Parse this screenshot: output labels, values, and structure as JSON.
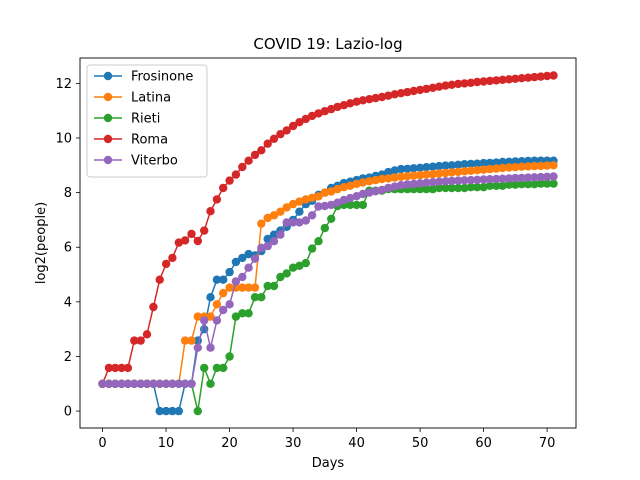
{
  "chart_data": {
    "type": "line",
    "title": "COVID 19: Lazio-log",
    "xlabel": "Days",
    "ylabel": "log2(people)",
    "xlim": [
      -3.55,
      74.55
    ],
    "ylim": [
      -0.62,
      12.93
    ],
    "xticks": [
      0,
      10,
      20,
      30,
      40,
      50,
      60,
      70
    ],
    "yticks": [
      0,
      2,
      4,
      6,
      8,
      10,
      12
    ],
    "legend_position": "upper-left",
    "grid": false,
    "markers": true,
    "series": [
      {
        "name": "Frosinone",
        "color": "#1f77b4",
        "x": [
          0,
          1,
          2,
          3,
          4,
          5,
          6,
          7,
          8,
          9,
          10,
          11,
          12,
          13,
          14,
          15,
          16,
          17,
          18,
          19,
          20,
          21,
          22,
          23,
          24,
          25,
          26,
          27,
          28,
          29,
          30,
          31,
          32,
          33,
          34,
          35,
          36,
          37,
          38,
          39,
          40,
          41,
          42,
          43,
          44,
          45,
          46,
          47,
          48,
          49,
          50,
          51,
          52,
          53,
          54,
          55,
          56,
          57,
          58,
          59,
          60,
          61,
          62,
          63,
          64,
          65,
          66,
          67,
          68,
          69,
          70,
          71
        ],
        "y": [
          1,
          1,
          1,
          1,
          1,
          1,
          1,
          1,
          1,
          0,
          0,
          0,
          0,
          1,
          1,
          2.58,
          3.0,
          4.17,
          4.81,
          4.81,
          5.09,
          5.46,
          5.61,
          5.75,
          5.7,
          5.86,
          6.3,
          6.46,
          6.61,
          6.75,
          7.0,
          7.3,
          7.58,
          7.7,
          7.92,
          8.0,
          8.17,
          8.25,
          8.35,
          8.4,
          8.46,
          8.52,
          8.55,
          8.61,
          8.66,
          8.75,
          8.81,
          8.86,
          8.87,
          8.89,
          8.91,
          8.93,
          8.95,
          8.97,
          8.99,
          9.0,
          9.02,
          9.04,
          9.05,
          9.06,
          9.08,
          9.09,
          9.1,
          9.12,
          9.13,
          9.14,
          9.15,
          9.16,
          9.17,
          9.17,
          9.17,
          9.17
        ]
      },
      {
        "name": "Latina",
        "color": "#ff7f0e",
        "x": [
          0,
          1,
          2,
          3,
          4,
          5,
          6,
          7,
          8,
          9,
          10,
          11,
          12,
          13,
          14,
          15,
          16,
          17,
          18,
          19,
          20,
          21,
          22,
          23,
          24,
          25,
          26,
          27,
          28,
          29,
          30,
          31,
          32,
          33,
          34,
          35,
          36,
          37,
          38,
          39,
          40,
          41,
          42,
          43,
          44,
          45,
          46,
          47,
          48,
          49,
          50,
          51,
          52,
          53,
          54,
          55,
          56,
          57,
          58,
          59,
          60,
          61,
          62,
          63,
          64,
          65,
          66,
          67,
          68,
          69,
          70,
          71
        ],
        "y": [
          1,
          1,
          1,
          1,
          1,
          1,
          1,
          1,
          1,
          1,
          1,
          1,
          1,
          2.58,
          2.58,
          3.46,
          3.46,
          3.46,
          3.91,
          4.32,
          4.52,
          4.52,
          4.52,
          4.52,
          4.52,
          6.86,
          7.07,
          7.17,
          7.3,
          7.46,
          7.58,
          7.67,
          7.75,
          7.81,
          7.86,
          8.0,
          8.04,
          8.13,
          8.2,
          8.25,
          8.32,
          8.37,
          8.42,
          8.46,
          8.5,
          8.52,
          8.55,
          8.58,
          8.6,
          8.62,
          8.64,
          8.66,
          8.68,
          8.7,
          8.72,
          8.74,
          8.76,
          8.78,
          8.8,
          8.82,
          8.84,
          8.86,
          8.88,
          8.9,
          8.92,
          8.93,
          8.95,
          8.96,
          8.97,
          8.98,
          8.99,
          9.0
        ]
      },
      {
        "name": "Rieti",
        "color": "#2ca02c",
        "x": [
          0,
          1,
          2,
          3,
          4,
          5,
          6,
          7,
          8,
          9,
          10,
          11,
          12,
          13,
          14,
          15,
          16,
          17,
          18,
          19,
          20,
          21,
          22,
          23,
          24,
          25,
          26,
          27,
          28,
          29,
          30,
          31,
          32,
          33,
          34,
          35,
          36,
          37,
          38,
          39,
          40,
          41,
          42,
          43,
          44,
          45,
          46,
          47,
          48,
          49,
          50,
          51,
          52,
          53,
          54,
          55,
          56,
          57,
          58,
          59,
          60,
          61,
          62,
          63,
          64,
          65,
          66,
          67,
          68,
          69,
          70,
          71
        ],
        "y": [
          1,
          1,
          1,
          1,
          1,
          1,
          1,
          1,
          1,
          1,
          1,
          1,
          1,
          1,
          1,
          0,
          1.58,
          1,
          1.58,
          1.58,
          2.0,
          3.46,
          3.58,
          3.58,
          4.17,
          4.17,
          4.58,
          4.58,
          4.91,
          5.04,
          5.25,
          5.32,
          5.42,
          5.95,
          6.22,
          6.7,
          7.04,
          7.51,
          7.55,
          7.55,
          7.55,
          7.55,
          8.07,
          8.07,
          8.07,
          8.13,
          8.13,
          8.13,
          8.13,
          8.13,
          8.13,
          8.13,
          8.13,
          8.17,
          8.17,
          8.17,
          8.17,
          8.17,
          8.2,
          8.2,
          8.2,
          8.25,
          8.25,
          8.25,
          8.29,
          8.29,
          8.31,
          8.31,
          8.31,
          8.33,
          8.33,
          8.33
        ]
      },
      {
        "name": "Roma",
        "color": "#d62728",
        "x": [
          0,
          1,
          2,
          3,
          4,
          5,
          6,
          7,
          8,
          9,
          10,
          11,
          12,
          13,
          14,
          15,
          16,
          17,
          18,
          19,
          20,
          21,
          22,
          23,
          24,
          25,
          26,
          27,
          28,
          29,
          30,
          31,
          32,
          33,
          34,
          35,
          36,
          37,
          38,
          39,
          40,
          41,
          42,
          43,
          44,
          45,
          46,
          47,
          48,
          49,
          50,
          51,
          52,
          53,
          54,
          55,
          56,
          57,
          58,
          59,
          60,
          61,
          62,
          63,
          64,
          65,
          66,
          67,
          68,
          69,
          70,
          71
        ],
        "y": [
          1,
          1.58,
          1.58,
          1.58,
          1.58,
          2.58,
          2.58,
          2.81,
          3.81,
          4.81,
          5.39,
          5.61,
          6.17,
          6.25,
          6.49,
          6.23,
          6.61,
          7.32,
          7.75,
          8.17,
          8.44,
          8.66,
          8.94,
          9.17,
          9.38,
          9.55,
          9.79,
          9.97,
          10.14,
          10.28,
          10.44,
          10.58,
          10.7,
          10.81,
          10.9,
          10.98,
          11.06,
          11.14,
          11.2,
          11.27,
          11.33,
          11.38,
          11.42,
          11.46,
          11.5,
          11.55,
          11.6,
          11.64,
          11.68,
          11.72,
          11.76,
          11.8,
          11.84,
          11.88,
          11.92,
          11.95,
          11.98,
          12.0,
          12.02,
          12.05,
          12.07,
          12.09,
          12.11,
          12.13,
          12.15,
          12.17,
          12.19,
          12.21,
          12.23,
          12.25,
          12.27,
          12.29
        ]
      },
      {
        "name": "Viterbo",
        "color": "#9467bd",
        "x": [
          0,
          1,
          2,
          3,
          4,
          5,
          6,
          7,
          8,
          9,
          10,
          11,
          12,
          13,
          14,
          15,
          16,
          17,
          18,
          19,
          20,
          21,
          22,
          23,
          24,
          25,
          26,
          27,
          28,
          29,
          30,
          31,
          32,
          33,
          34,
          35,
          36,
          37,
          38,
          39,
          40,
          41,
          42,
          43,
          44,
          45,
          46,
          47,
          48,
          49,
          50,
          51,
          52,
          53,
          54,
          55,
          56,
          57,
          58,
          59,
          60,
          61,
          62,
          63,
          64,
          65,
          66,
          67,
          68,
          69,
          70,
          71
        ],
        "y": [
          1,
          1,
          1,
          1,
          1,
          1,
          1,
          1,
          1,
          1,
          1,
          1,
          1,
          1,
          1,
          2.32,
          3.32,
          2.32,
          3.32,
          3.7,
          3.91,
          4.75,
          4.91,
          5.25,
          5.58,
          5.98,
          6.04,
          6.22,
          6.46,
          6.91,
          6.91,
          6.91,
          6.98,
          7.17,
          7.49,
          7.51,
          7.55,
          7.63,
          7.73,
          7.8,
          7.87,
          7.95,
          8.0,
          8.05,
          8.1,
          8.17,
          8.22,
          8.27,
          8.3,
          8.32,
          8.34,
          8.36,
          8.38,
          8.4,
          8.42,
          8.43,
          8.44,
          8.45,
          8.46,
          8.47,
          8.48,
          8.49,
          8.5,
          8.51,
          8.52,
          8.53,
          8.54,
          8.55,
          8.56,
          8.57,
          8.58,
          8.59
        ]
      }
    ]
  }
}
